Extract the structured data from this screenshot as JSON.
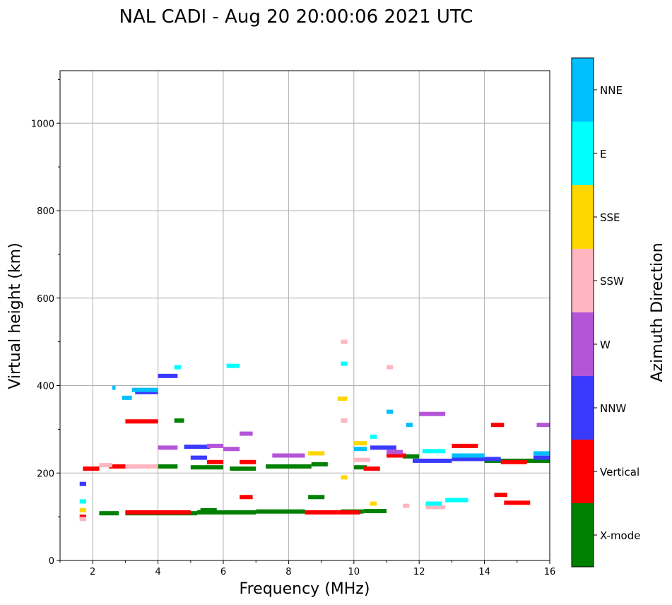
{
  "chart_data": {
    "type": "scatter",
    "title": "NAL CADI - Aug 20 20:00:06 2021 UTC",
    "xlabel": "Frequency (MHz)",
    "ylabel": "Virtual height (km)",
    "xlim": [
      1,
      16
    ],
    "ylim": [
      0,
      1120
    ],
    "xticks": [
      2,
      4,
      6,
      8,
      10,
      12,
      14,
      16
    ],
    "yticks": [
      0,
      200,
      400,
      600,
      800,
      1000
    ],
    "grid": true,
    "colorbar": {
      "title": "Azimuth Direction",
      "categories": [
        {
          "label": "X-mode",
          "color": "#008000"
        },
        {
          "label": "Vertical",
          "color": "#ff0000"
        },
        {
          "label": "NNW",
          "color": "#3a3aff"
        },
        {
          "label": "W",
          "color": "#b455d8"
        },
        {
          "label": "SSW",
          "color": "#ffb6c1"
        },
        {
          "label": "SSE",
          "color": "#ffd700"
        },
        {
          "label": "E",
          "color": "#00ffff"
        },
        {
          "label": "NNE",
          "color": "#00bfff"
        }
      ]
    },
    "series": [
      {
        "name": "X-mode",
        "segments": [
          [
            3.0,
            5.2,
            108
          ],
          [
            5.2,
            7.0,
            110
          ],
          [
            7.0,
            8.5,
            112
          ],
          [
            9.6,
            10.3,
            112
          ],
          [
            10.3,
            11.0,
            113
          ],
          [
            4.0,
            4.6,
            215
          ],
          [
            5.0,
            6.0,
            213
          ],
          [
            6.2,
            7.0,
            210
          ],
          [
            7.3,
            8.7,
            215
          ],
          [
            8.7,
            9.2,
            220
          ],
          [
            10.0,
            10.4,
            213
          ],
          [
            14.0,
            16.0,
            228
          ],
          [
            2.2,
            2.8,
            108
          ],
          [
            5.3,
            5.8,
            115
          ],
          [
            4.5,
            4.8,
            320
          ],
          [
            8.6,
            9.1,
            145
          ],
          [
            11.5,
            12.0,
            238
          ]
        ]
      },
      {
        "name": "Vertical",
        "segments": [
          [
            1.7,
            2.2,
            210
          ],
          [
            2.5,
            3.5,
            215
          ],
          [
            3.0,
            4.0,
            318
          ],
          [
            3.0,
            5.0,
            110
          ],
          [
            6.5,
            7.0,
            225
          ],
          [
            6.5,
            6.9,
            145
          ],
          [
            8.5,
            9.5,
            110
          ],
          [
            9.5,
            10.2,
            110
          ],
          [
            11.0,
            11.6,
            240
          ],
          [
            13.0,
            13.8,
            262
          ],
          [
            14.2,
            14.6,
            310
          ],
          [
            14.3,
            14.7,
            150
          ],
          [
            14.6,
            15.4,
            132
          ],
          [
            14.5,
            15.3,
            225
          ],
          [
            1.6,
            1.8,
            100
          ],
          [
            10.3,
            10.8,
            210
          ],
          [
            5.5,
            6.0,
            225
          ]
        ]
      },
      {
        "name": "NNW",
        "segments": [
          [
            4.0,
            4.6,
            422
          ],
          [
            3.3,
            4.0,
            385
          ],
          [
            4.8,
            5.6,
            260
          ],
          [
            10.5,
            11.3,
            258
          ],
          [
            11.8,
            13.0,
            228
          ],
          [
            13.0,
            14.5,
            232
          ],
          [
            15.5,
            16.0,
            235
          ],
          [
            1.6,
            1.8,
            175
          ],
          [
            5.0,
            5.5,
            235
          ]
        ]
      },
      {
        "name": "W",
        "segments": [
          [
            4.0,
            4.6,
            258
          ],
          [
            6.0,
            6.5,
            255
          ],
          [
            6.5,
            6.9,
            290
          ],
          [
            7.5,
            8.5,
            240
          ],
          [
            12.0,
            12.8,
            335
          ],
          [
            15.6,
            16.0,
            310
          ],
          [
            11.0,
            11.5,
            248
          ],
          [
            5.5,
            6.0,
            262
          ]
        ]
      },
      {
        "name": "SSW",
        "segments": [
          [
            1.6,
            1.8,
            95
          ],
          [
            2.2,
            2.6,
            218
          ],
          [
            3.0,
            4.0,
            215
          ],
          [
            9.6,
            9.8,
            500
          ],
          [
            9.6,
            9.8,
            320
          ],
          [
            10.0,
            10.5,
            230
          ],
          [
            11.0,
            11.2,
            442
          ],
          [
            12.2,
            12.8,
            122
          ],
          [
            11.5,
            11.7,
            125
          ]
        ]
      },
      {
        "name": "SSE",
        "segments": [
          [
            8.6,
            9.1,
            245
          ],
          [
            9.5,
            9.8,
            370
          ],
          [
            9.6,
            9.8,
            190
          ],
          [
            10.0,
            10.4,
            268
          ],
          [
            10.5,
            10.7,
            130
          ],
          [
            1.6,
            1.8,
            115
          ]
        ]
      },
      {
        "name": "E",
        "segments": [
          [
            6.1,
            6.5,
            445
          ],
          [
            4.5,
            4.7,
            442
          ],
          [
            12.1,
            12.8,
            250
          ],
          [
            12.2,
            12.7,
            130
          ],
          [
            12.8,
            13.5,
            138
          ],
          [
            10.5,
            10.7,
            283
          ],
          [
            9.6,
            9.8,
            450
          ],
          [
            1.6,
            1.8,
            135
          ]
        ]
      },
      {
        "name": "NNE",
        "segments": [
          [
            3.2,
            4.0,
            390
          ],
          [
            2.9,
            3.2,
            372
          ],
          [
            11.6,
            11.8,
            310
          ],
          [
            13.0,
            14.0,
            240
          ],
          [
            11.0,
            11.2,
            340
          ],
          [
            2.6,
            2.7,
            395
          ],
          [
            15.5,
            16.0,
            245
          ],
          [
            10.0,
            10.4,
            255
          ]
        ]
      }
    ]
  }
}
